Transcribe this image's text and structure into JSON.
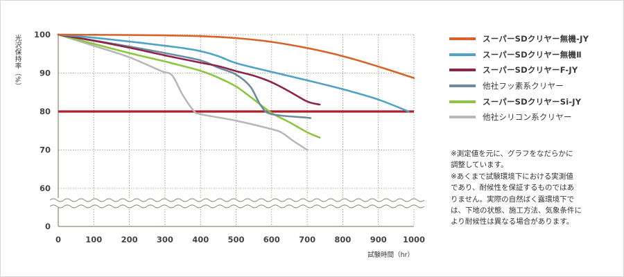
{
  "chart_data": {
    "type": "line",
    "ylabel": "光沢保持率（%）",
    "xlabel": "試験時間（hr）",
    "xlim": [
      0,
      1000
    ],
    "ylim_upper": [
      60,
      100
    ],
    "x_ticks": [
      "0",
      "100",
      "200",
      "300",
      "400",
      "500",
      "600",
      "700",
      "800",
      "900",
      "1000"
    ],
    "y_ticks": [
      "100",
      "90",
      "80",
      "70",
      "60",
      "0"
    ],
    "axis_break": true,
    "grid": "dotted",
    "reference_line": {
      "y": 80,
      "color": "#b01f2a"
    },
    "series": [
      {
        "name": "スーパーSDクリヤー無機-JY",
        "color": "#d9622b",
        "points": [
          [
            0,
            100
          ],
          [
            100,
            99.95
          ],
          [
            200,
            99.9
          ],
          [
            300,
            99.8
          ],
          [
            400,
            99.6
          ],
          [
            500,
            99.1
          ],
          [
            600,
            98.1
          ],
          [
            700,
            96.5
          ],
          [
            800,
            94.4
          ],
          [
            900,
            91.7
          ],
          [
            1000,
            88.7
          ]
        ]
      },
      {
        "name": "スーパーSDクリヤー無機Ⅱ",
        "color": "#4fa3c4",
        "points": [
          [
            0,
            100
          ],
          [
            100,
            99.2
          ],
          [
            200,
            98.2
          ],
          [
            300,
            97.1
          ],
          [
            350,
            96.5
          ],
          [
            400,
            95.7
          ],
          [
            450,
            94.4
          ],
          [
            500,
            92.6
          ],
          [
            600,
            90.3
          ],
          [
            700,
            88.1
          ],
          [
            800,
            85.8
          ],
          [
            900,
            83.1
          ],
          [
            985,
            80
          ]
        ]
      },
      {
        "name": "スーパーSDクリヤーF-JY",
        "color": "#8e2247",
        "points": [
          [
            0,
            100
          ],
          [
            100,
            98.4
          ],
          [
            200,
            96.6
          ],
          [
            300,
            94.6
          ],
          [
            400,
            92.7
          ],
          [
            450,
            91.8
          ],
          [
            500,
            90.5
          ],
          [
            550,
            89.3
          ],
          [
            600,
            87.6
          ],
          [
            650,
            85.2
          ],
          [
            700,
            82.6
          ],
          [
            735,
            81.8
          ]
        ]
      },
      {
        "name": "他社フッ素系クリヤー",
        "color": "#6e8aa0",
        "points": [
          [
            0,
            100
          ],
          [
            100,
            98.5
          ],
          [
            200,
            96.9
          ],
          [
            300,
            95.2
          ],
          [
            400,
            93.3
          ],
          [
            450,
            91.4
          ],
          [
            500,
            89.6
          ],
          [
            540,
            86.5
          ],
          [
            570,
            81.5
          ],
          [
            600,
            79.3
          ],
          [
            700,
            78.4
          ],
          [
            705,
            78.3
          ]
        ]
      },
      {
        "name": "スーパーSDクリヤーSi-JY",
        "color": "#8cc63e",
        "points": [
          [
            0,
            100
          ],
          [
            100,
            97.6
          ],
          [
            200,
            95.2
          ],
          [
            300,
            93
          ],
          [
            400,
            90.6
          ],
          [
            450,
            88.8
          ],
          [
            500,
            86.5
          ],
          [
            550,
            83.1
          ],
          [
            600,
            79.6
          ],
          [
            650,
            77.2
          ],
          [
            700,
            74.6
          ],
          [
            735,
            73.2
          ]
        ]
      },
      {
        "name": "他社シリコン系クリヤー",
        "color": "#b8b8b8",
        "points": [
          [
            0,
            100
          ],
          [
            100,
            97.1
          ],
          [
            200,
            94.1
          ],
          [
            290,
            90.5
          ],
          [
            320,
            89.4
          ],
          [
            350,
            84.3
          ],
          [
            380,
            80.3
          ],
          [
            400,
            79.3
          ],
          [
            500,
            77.6
          ],
          [
            600,
            75.4
          ],
          [
            630,
            74.4
          ],
          [
            660,
            72.4
          ],
          [
            700,
            70
          ]
        ]
      }
    ]
  },
  "note": {
    "lines": [
      "※測定値を元に、グラフをなだらかに",
      "調整しています。",
      "※あくまで試験環境下における実測値",
      "であり、耐候性を保証するものではあ",
      "りません。実際の自然ばく露環境下で",
      "は、下地の状態、施工方法、気象条件に",
      "より耐候性は異なる場合があります。"
    ]
  }
}
